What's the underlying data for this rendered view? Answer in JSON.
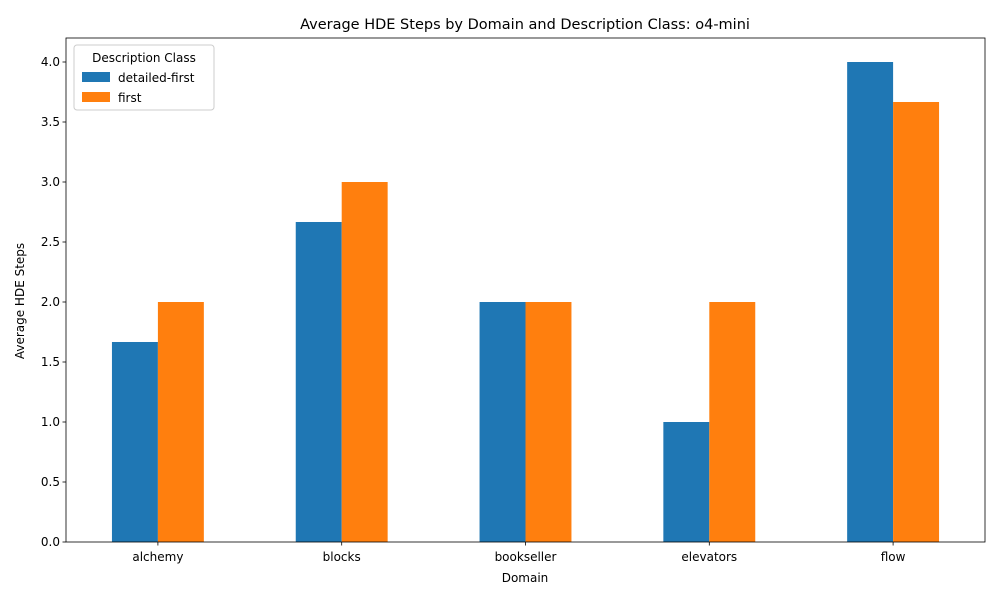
{
  "chart_data": {
    "type": "bar",
    "title": "Average HDE Steps by Domain and Description Class: o4-mini",
    "xlabel": "Domain",
    "ylabel": "Average HDE Steps",
    "categories": [
      "alchemy",
      "blocks",
      "bookseller",
      "elevators",
      "flow"
    ],
    "series": [
      {
        "name": "detailed-first",
        "color": "#1f77b4",
        "values": [
          1.6667,
          2.6667,
          2.0,
          1.0,
          4.0
        ]
      },
      {
        "name": "first",
        "color": "#ff7f0e",
        "values": [
          2.0,
          3.0,
          2.0,
          2.0,
          3.6667
        ]
      }
    ],
    "ylim": [
      0,
      4.2
    ],
    "yticks": [
      "0.0",
      "0.5",
      "1.0",
      "1.5",
      "2.0",
      "2.5",
      "3.0",
      "3.5",
      "4.0"
    ],
    "grid": false,
    "legend": {
      "title": "Description Class",
      "placement": "top-left"
    }
  }
}
